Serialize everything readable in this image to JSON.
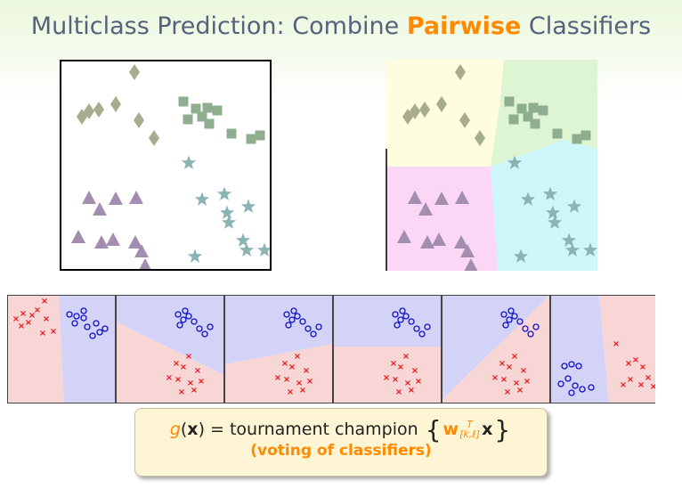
{
  "title": {
    "prefix": "Multiclass Prediction: Combine ",
    "highlight": "Pairwise",
    "suffix": " Classifiers"
  },
  "formula": {
    "g": "g",
    "x": "x",
    "equals": "=",
    "text": "tournament champion",
    "w": "w",
    "superscript": "T",
    "subscript": "[k,ℓ]",
    "note": "(voting of classifiers)"
  },
  "colors": {
    "diamond": "#a7ac8e",
    "square": "#8fae90",
    "triangle": "#a48eb0",
    "star": "#8ab3b3",
    "region_yellow": "#fffde0",
    "region_green": "#ddf5d3",
    "region_pink": "#fcd6f6",
    "region_cyan": "#ccf6f8",
    "pair_red": "#f9d6d6",
    "pair_blue": "#d3d3f7",
    "cross": "#e8181b",
    "circle": "#1010c8",
    "accent": "#ff8a00",
    "title": "#56617d"
  },
  "icons": [
    "diamond-icon",
    "square-icon",
    "triangle-icon",
    "star-icon",
    "cross-icon",
    "circle-icon"
  ]
}
